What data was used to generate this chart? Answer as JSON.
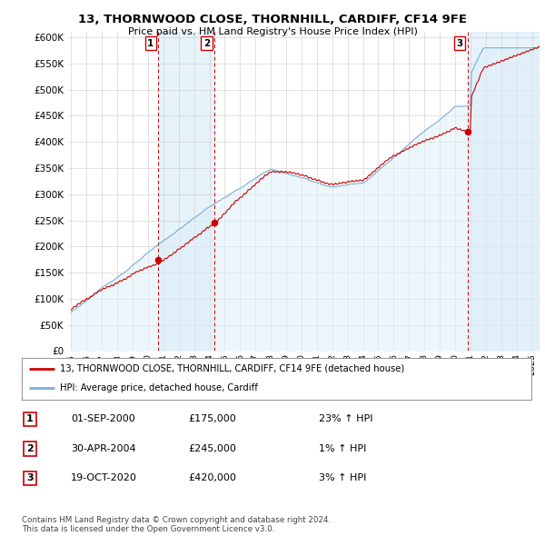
{
  "title": "13, THORNWOOD CLOSE, THORNHILL, CARDIFF, CF14 9FE",
  "subtitle": "Price paid vs. HM Land Registry's House Price Index (HPI)",
  "ylabel_ticks": [
    "£0",
    "£50K",
    "£100K",
    "£150K",
    "£200K",
    "£250K",
    "£300K",
    "£350K",
    "£400K",
    "£450K",
    "£500K",
    "£550K",
    "£600K"
  ],
  "ytick_values": [
    0,
    50000,
    100000,
    150000,
    200000,
    250000,
    300000,
    350000,
    400000,
    450000,
    500000,
    550000,
    600000
  ],
  "ylim": [
    0,
    610000
  ],
  "sale_years": [
    2000.67,
    2004.33,
    2020.8
  ],
  "sale_prices": [
    175000,
    245000,
    420000
  ],
  "sale_labels": [
    "1",
    "2",
    "3"
  ],
  "sale_color": "#cc0000",
  "hpi_color": "#7aadd4",
  "hpi_fill_color": "#ddeef8",
  "shade_color": "#ddeef8",
  "legend_label_price": "13, THORNWOOD CLOSE, THORNHILL, CARDIFF, CF14 9FE (detached house)",
  "legend_label_hpi": "HPI: Average price, detached house, Cardiff",
  "table_rows": [
    [
      "1",
      "01-SEP-2000",
      "£175,000",
      "23% ↑ HPI"
    ],
    [
      "2",
      "30-APR-2004",
      "£245,000",
      "1% ↑ HPI"
    ],
    [
      "3",
      "19-OCT-2020",
      "£420,000",
      "3% ↑ HPI"
    ]
  ],
  "footer": "Contains HM Land Registry data © Crown copyright and database right 2024.\nThis data is licensed under the Open Government Licence v3.0.",
  "background_color": "#ffffff",
  "grid_color": "#cccccc",
  "vline_color": "#cc0000",
  "x_start_year": 1994.8,
  "x_end_year": 2025.5
}
